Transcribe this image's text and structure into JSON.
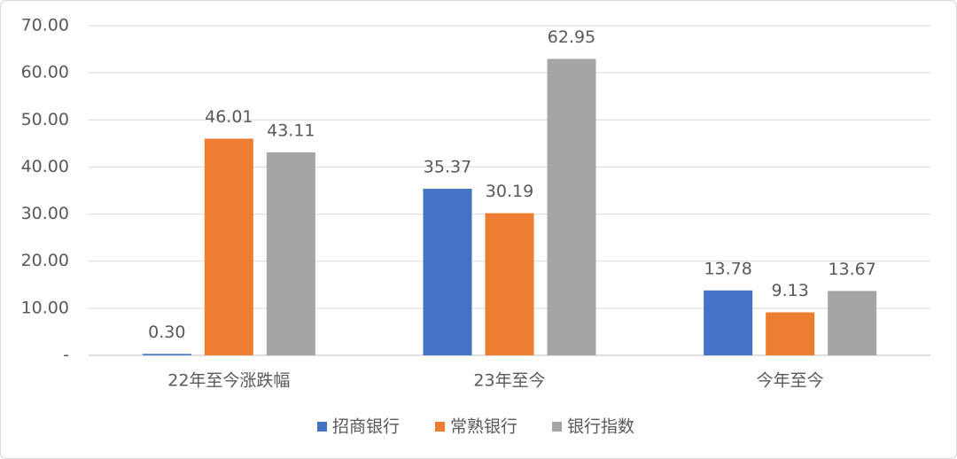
{
  "chart_data": {
    "type": "bar",
    "categories": [
      "22年至今涨跌幅",
      "23年至今",
      "今年至今"
    ],
    "series": [
      {
        "name": "招商银行",
        "color": "#4472c4",
        "values": [
          0.3,
          35.37,
          13.78
        ],
        "value_labels": [
          "0.30",
          "35.37",
          "13.78"
        ]
      },
      {
        "name": "常熟银行",
        "color": "#ed7d31",
        "values": [
          46.01,
          30.19,
          9.13
        ],
        "value_labels": [
          "46.01",
          "30.19",
          "9.13"
        ]
      },
      {
        "name": "银行指数",
        "color": "#a5a5a5",
        "values": [
          43.11,
          62.95,
          13.67
        ],
        "value_labels": [
          "43.11",
          "62.95",
          "13.67"
        ]
      }
    ],
    "ylim": [
      0,
      70
    ],
    "yticks": [
      {
        "value": 0,
        "label": "-"
      },
      {
        "value": 10,
        "label": "10.00"
      },
      {
        "value": 20,
        "label": "20.00"
      },
      {
        "value": 30,
        "label": "30.00"
      },
      {
        "value": 40,
        "label": "40.00"
      },
      {
        "value": 50,
        "label": "50.00"
      },
      {
        "value": 60,
        "label": "60.00"
      },
      {
        "value": 70,
        "label": "70.00"
      }
    ],
    "grid": true,
    "legend": "bottom"
  }
}
